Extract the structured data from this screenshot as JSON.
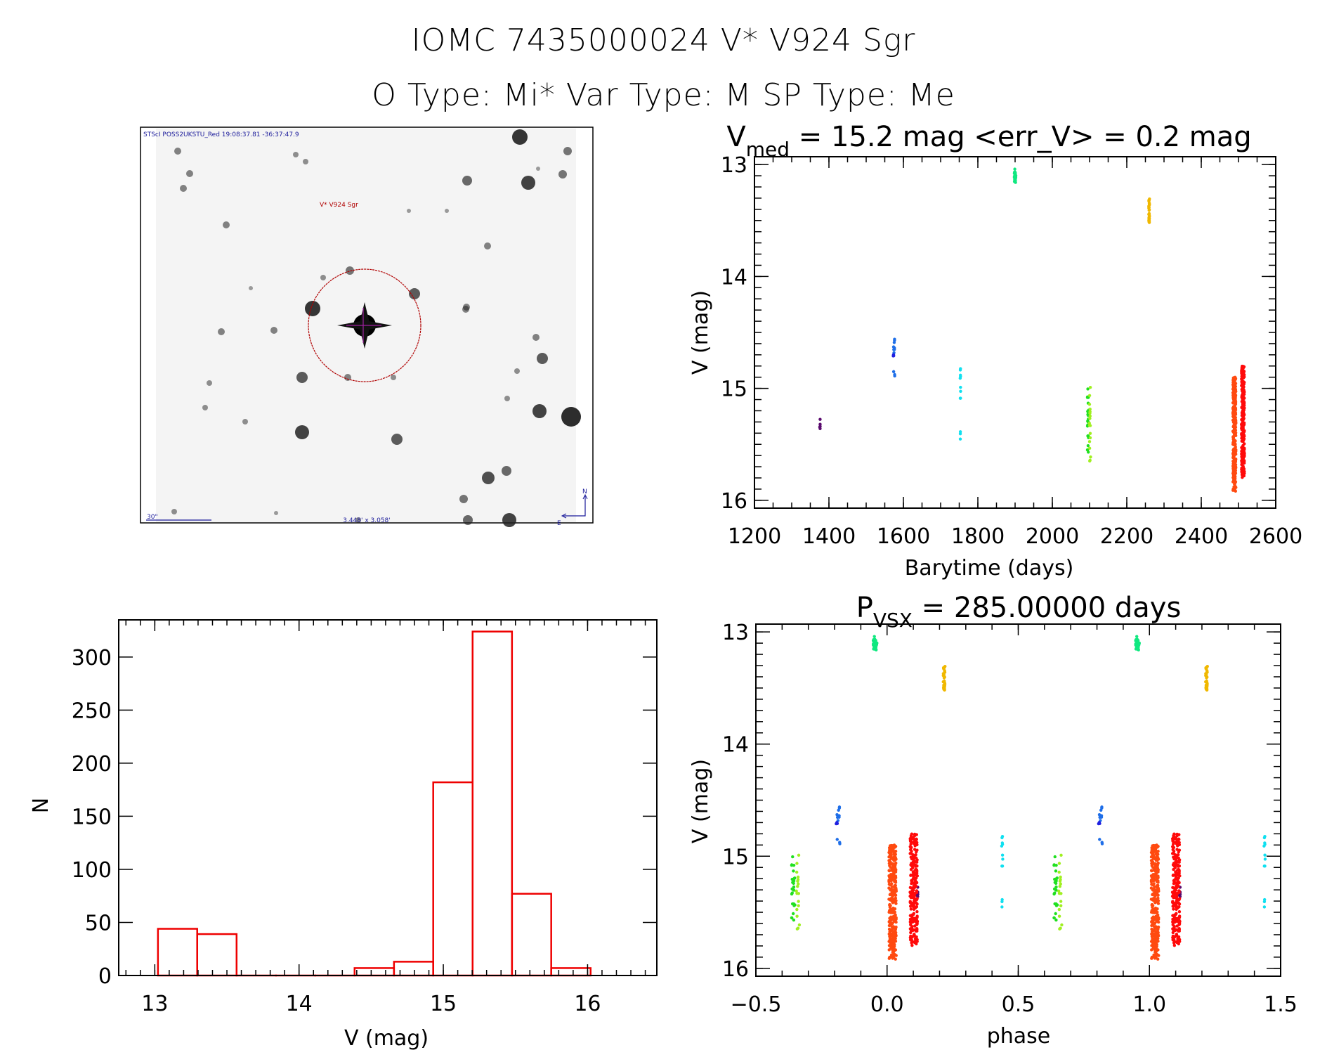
{
  "header": {
    "title": "IOMC 7435000024    V* V924 Sgr",
    "subtitle": "O Type: Mi*   Var Type: M   SP Type: Me"
  },
  "finder": {
    "survey_label": "STScI POSS2UKSTU_Red 19:08:37.81 -36:37:47.9",
    "target_label": "V* V924 Sgr",
    "scale_label": "30\"",
    "fov_label": "3.448' x 3.058'",
    "north_label": "N",
    "east_label": "E",
    "colors": {
      "label": "#1a1a9a",
      "target": "#b00000",
      "cross": "#a020a0"
    }
  },
  "chart_data": [
    {
      "id": "light_curve",
      "type": "scatter",
      "title_main": "V",
      "title_sub": "med",
      "title_rest": " = 15.2 mag <err_V> = 0.2 mag",
      "xlabel": "Barytime (days)",
      "ylabel": "V (mag)",
      "xlim": [
        1200,
        2600
      ],
      "ylim": [
        12.93,
        16.07
      ],
      "y_inverted": true,
      "xticks": [
        1200,
        1400,
        1600,
        1800,
        2000,
        2200,
        2400,
        2600
      ],
      "yticks": [
        13,
        14,
        15,
        16
      ],
      "median_mag": 15.2,
      "mean_err": 0.2,
      "groups": [
        {
          "name": "season-1",
          "color": "#5a0a6e",
          "t": 1376,
          "dt": 1,
          "mag": [
            15.24,
            15.36
          ],
          "n": 5
        },
        {
          "name": "season-2a",
          "color": "#1e6ee8",
          "t": 1575,
          "dt": 2,
          "mag": [
            14.48,
            14.95
          ],
          "n": 12
        },
        {
          "name": "season-2b",
          "color": "#2020e0",
          "t": 1573,
          "dt": 1,
          "mag": [
            14.69,
            14.73
          ],
          "n": 3
        },
        {
          "name": "season-3",
          "color": "#10e0f0",
          "t": 1753,
          "dt": 1,
          "mag": [
            14.82,
            15.49
          ],
          "n": 12
        },
        {
          "name": "season-4",
          "color": "#10e880",
          "t": 1900,
          "dt": 2,
          "mag": [
            13.04,
            13.16
          ],
          "n": 30
        },
        {
          "name": "season-5a",
          "color": "#20e020",
          "t": 2096,
          "dt": 2,
          "mag": [
            15.0,
            15.62
          ],
          "n": 25
        },
        {
          "name": "season-5b",
          "color": "#a0f020",
          "t": 2101,
          "dt": 2,
          "mag": [
            14.97,
            15.66
          ],
          "n": 18
        },
        {
          "name": "season-6",
          "color": "#f0b800",
          "t": 2260,
          "dt": 1,
          "mag": [
            13.3,
            13.52
          ],
          "n": 30
        },
        {
          "name": "season-7a",
          "color": "#ff4a10",
          "t": 2489,
          "dt": 4,
          "mag": [
            14.9,
            15.92
          ],
          "n": 300
        },
        {
          "name": "season-7b",
          "color": "#ff0a0a",
          "t": 2512,
          "dt": 4,
          "mag": [
            14.8,
            15.8
          ],
          "n": 220
        }
      ]
    },
    {
      "id": "phase_curve",
      "type": "scatter",
      "title_main": "P",
      "title_sub": "VSX",
      "title_rest": " = 285.00000 days",
      "period_days": 285.0,
      "epoch": 2483,
      "xlabel": "phase",
      "ylabel": "V (mag)",
      "xlim": [
        -0.5,
        1.5
      ],
      "ylim": [
        12.93,
        16.07
      ],
      "y_inverted": true,
      "xticks": [
        "-0.5",
        "0.0",
        "0.5",
        "1.0",
        "1.5"
      ],
      "yticks": [
        13,
        14,
        15,
        16
      ]
    },
    {
      "id": "histogram",
      "type": "bar",
      "xlabel": "V (mag)",
      "ylabel": "N",
      "xlim": [
        12.75,
        16.48
      ],
      "ylim": [
        0,
        335
      ],
      "xticks": [
        13,
        14,
        15,
        16
      ],
      "yticks": [
        0,
        50,
        100,
        150,
        200,
        250,
        300
      ],
      "bar_color": "#ee0000",
      "bin_edges": [
        13.022,
        13.294,
        13.567,
        13.84,
        14.112,
        14.385,
        14.658,
        14.93,
        15.203,
        15.476,
        15.748,
        16.021
      ],
      "counts": [
        44,
        39,
        0,
        0,
        0,
        7,
        13,
        182,
        324,
        77,
        7
      ]
    }
  ]
}
